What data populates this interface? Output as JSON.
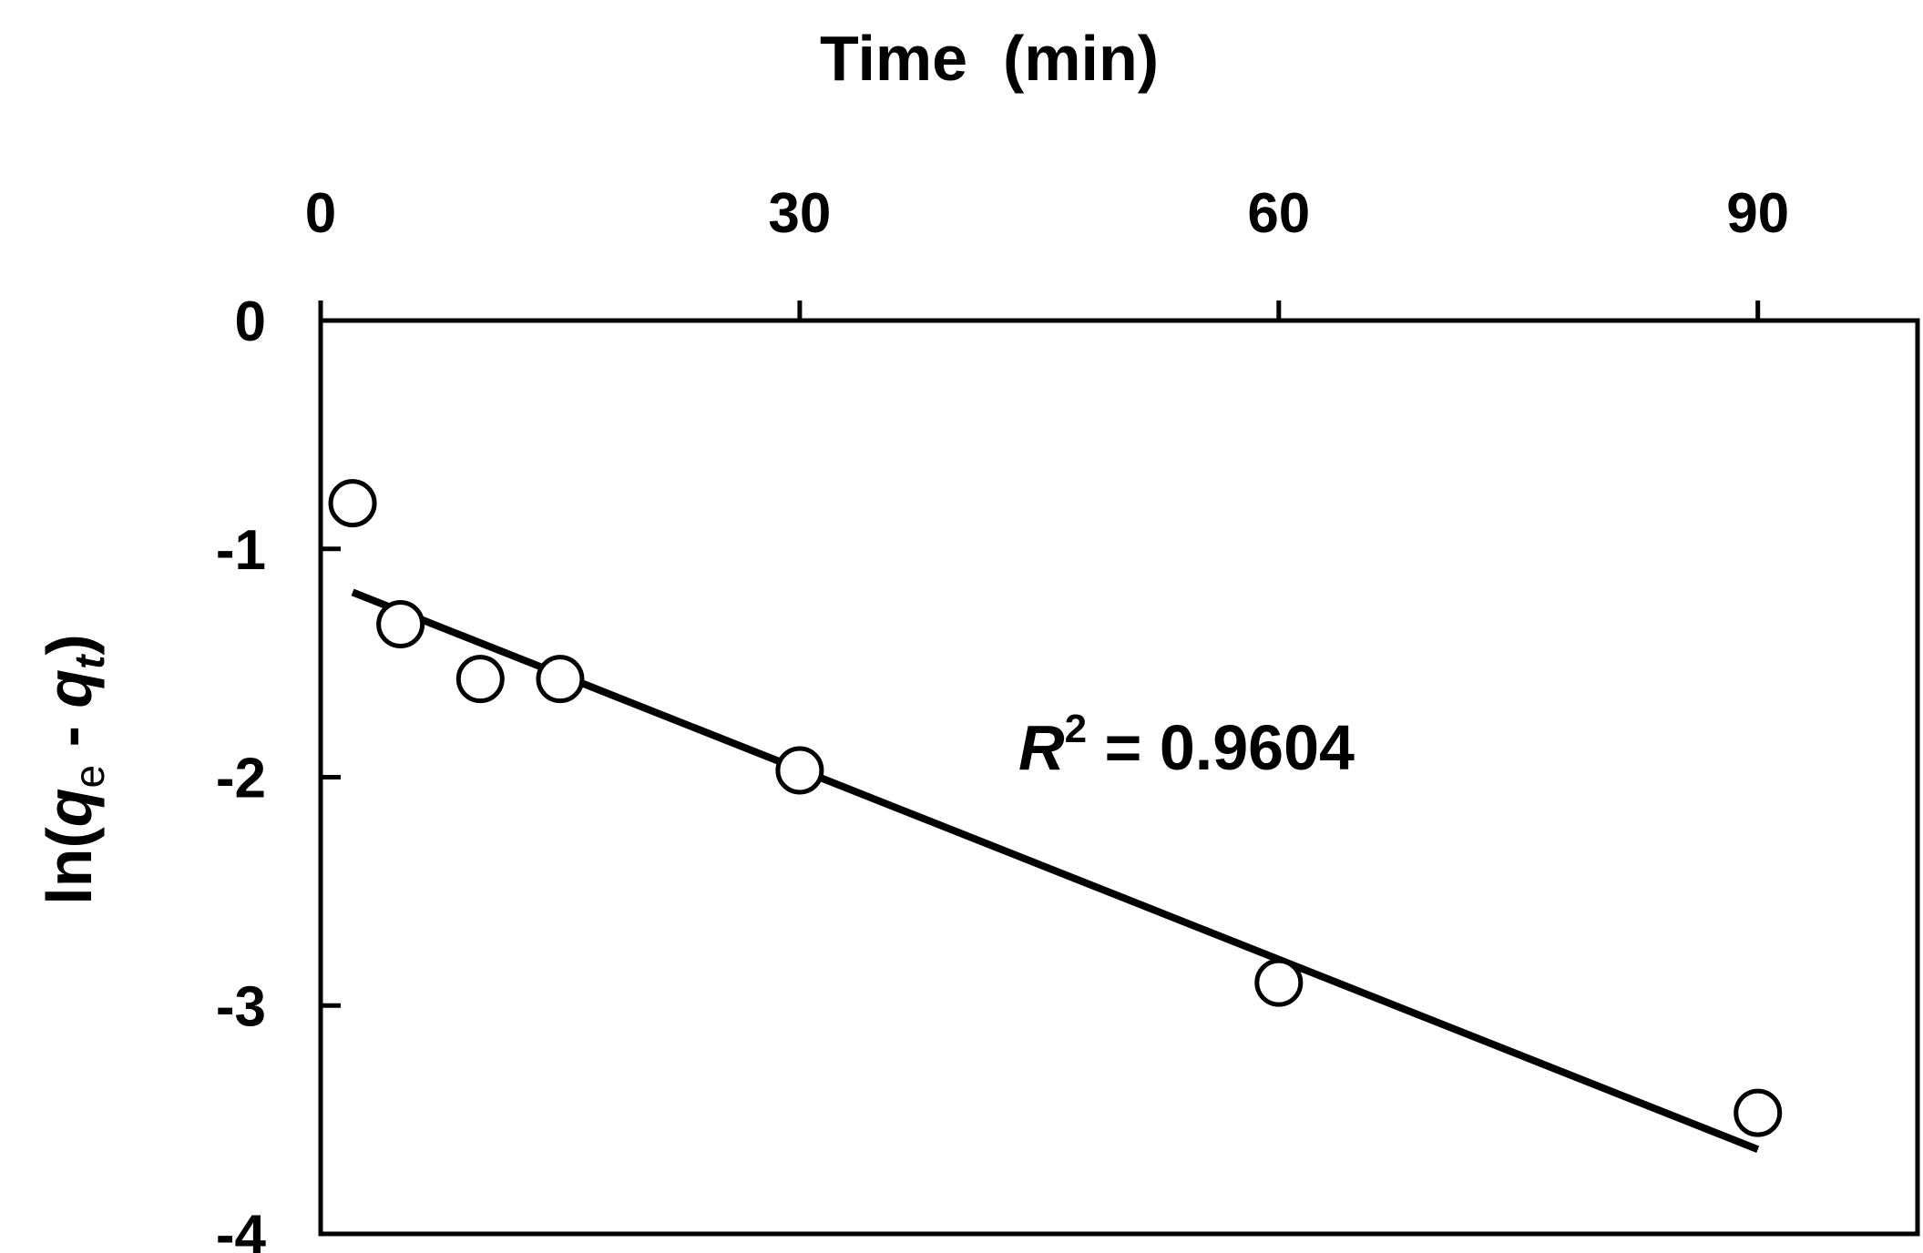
{
  "chart_data": {
    "type": "scatter",
    "title": "",
    "xlabel": "Time  (min)",
    "ylabel": {
      "prefix": "ln(",
      "q1": "q",
      "sub1": "e",
      "mid": " - ",
      "q2": "q",
      "sub2": "t",
      "suffix": ")"
    },
    "xaxis_position": "top",
    "xlim": [
      0,
      100
    ],
    "ylim": [
      -4,
      0
    ],
    "xticks": [
      0,
      30,
      60,
      90
    ],
    "xtick_labels": [
      "0",
      "30",
      "60",
      "90"
    ],
    "yticks": [
      0,
      -1,
      -2,
      -3,
      -4
    ],
    "ytick_labels": [
      "0",
      "-1",
      "-2",
      "-3",
      "-4"
    ],
    "grid": false,
    "series": [
      {
        "marker": "open-circle",
        "points": [
          {
            "x": 2,
            "y": -0.8
          },
          {
            "x": 5,
            "y": -1.33
          },
          {
            "x": 10,
            "y": -1.57
          },
          {
            "x": 15,
            "y": -1.57
          },
          {
            "x": 30,
            "y": -1.97
          },
          {
            "x": 60,
            "y": -2.9
          },
          {
            "x": 90,
            "y": -3.47
          }
        ]
      }
    ],
    "fit_line": {
      "x": [
        2,
        90
      ],
      "y": [
        -1.19,
        -3.63
      ]
    },
    "annotation": {
      "r_symbol": "R",
      "superscript": "2",
      "text": " = 0.9604"
    }
  }
}
